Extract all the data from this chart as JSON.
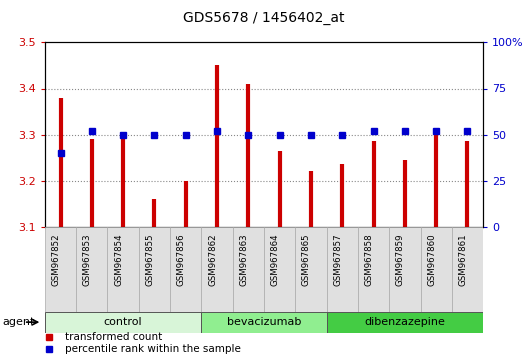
{
  "title": "GDS5678 / 1456402_at",
  "samples": [
    "GSM967852",
    "GSM967853",
    "GSM967854",
    "GSM967855",
    "GSM967856",
    "GSM967862",
    "GSM967863",
    "GSM967864",
    "GSM967865",
    "GSM967857",
    "GSM967858",
    "GSM967859",
    "GSM967860",
    "GSM967861"
  ],
  "transformed_count": [
    3.38,
    3.29,
    3.29,
    3.16,
    3.2,
    3.45,
    3.41,
    3.265,
    3.22,
    3.235,
    3.285,
    3.245,
    3.31,
    3.285
  ],
  "percentile_rank": [
    40,
    52,
    50,
    50,
    50,
    52,
    50,
    50,
    50,
    50,
    52,
    52,
    52,
    52
  ],
  "groups": [
    {
      "label": "control",
      "start": 0,
      "end": 4,
      "color": "#d8f5d8"
    },
    {
      "label": "bevacizumab",
      "start": 5,
      "end": 8,
      "color": "#90ee90"
    },
    {
      "label": "dibenzazepine",
      "start": 9,
      "end": 13,
      "color": "#44cc44"
    }
  ],
  "ylim_left": [
    3.1,
    3.5
  ],
  "ylim_right": [
    0,
    100
  ],
  "yticks_left": [
    3.1,
    3.2,
    3.3,
    3.4,
    3.5
  ],
  "yticks_right": [
    0,
    25,
    50,
    75,
    100
  ],
  "ytick_labels_right": [
    "0",
    "25",
    "50",
    "75",
    "100%"
  ],
  "bar_color": "#cc0000",
  "dot_color": "#0000cc",
  "bg_color": "#ffffff",
  "legend_items": [
    {
      "label": "transformed count",
      "color": "#cc0000",
      "marker": "s"
    },
    {
      "label": "percentile rank within the sample",
      "color": "#0000cc",
      "marker": "s"
    }
  ]
}
